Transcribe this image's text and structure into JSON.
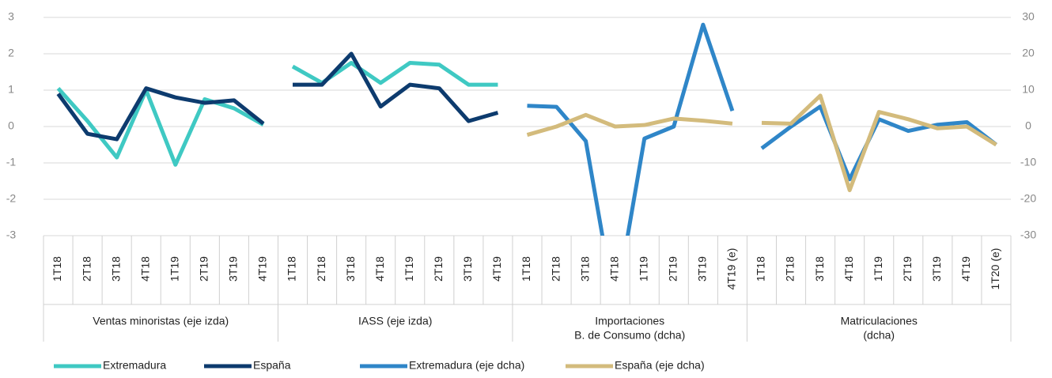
{
  "chart_data": {
    "type": "line",
    "groups": [
      {
        "name": "Ventas minoristas (eje izda)",
        "categories": [
          "1T18",
          "2T18",
          "3T18",
          "4T18",
          "1T19",
          "2T19",
          "3T19",
          "4T19"
        ]
      },
      {
        "name": "IASS (eje izda)",
        "categories": [
          "1T18",
          "2T18",
          "3T18",
          "4T18",
          "1T19",
          "2T19",
          "3T19",
          "4T19"
        ]
      },
      {
        "name": [
          "Importaciones",
          "B. de Consumo (dcha)"
        ],
        "categories": [
          "1T18",
          "2T18",
          "3T18",
          "4T18",
          "1T19",
          "2T19",
          "3T19",
          "4T19 (e)"
        ]
      },
      {
        "name": [
          "Matriculaciones",
          "(dcha)"
        ],
        "categories": [
          "1T18",
          "2T18",
          "3T18",
          "4T18",
          "1T19",
          "2T19",
          "3T19",
          "4T19",
          "1T20 (e)"
        ]
      }
    ],
    "ylim": [
      -3,
      3
    ],
    "yticks": [
      3,
      2,
      1,
      0,
      -1,
      -2,
      -3
    ],
    "y2lim": [
      -30,
      30
    ],
    "y2ticks": [
      30,
      20,
      10,
      0,
      -10,
      -20,
      -30
    ],
    "grid": true,
    "series": [
      {
        "name": "Extremadura",
        "color": "#3fc9c3",
        "values": [
          1.05,
          0.15,
          -0.85,
          1.0,
          -1.05,
          0.75,
          0.5,
          0.05,
          1.65,
          1.2,
          1.75,
          1.2,
          1.75,
          1.7,
          1.15,
          1.15,
          null,
          null,
          null,
          null,
          null,
          null,
          null,
          null,
          null,
          null,
          null,
          null,
          null,
          null,
          null,
          null,
          null
        ]
      },
      {
        "name": "España",
        "color": "#0d3b6e",
        "values": [
          0.9,
          -0.2,
          -0.35,
          1.05,
          0.8,
          0.65,
          0.72,
          0.08,
          1.15,
          1.15,
          2.0,
          0.55,
          1.15,
          1.05,
          0.15,
          0.38,
          null,
          null,
          null,
          null,
          null,
          null,
          null,
          null,
          null,
          null,
          null,
          null,
          null,
          null,
          null,
          null,
          null
        ]
      },
      {
        "name": "Extremadura (eje dcha)",
        "color": "#2f86c8",
        "axis": "y2",
        "values": [
          null,
          null,
          null,
          null,
          null,
          null,
          null,
          null,
          null,
          null,
          null,
          null,
          null,
          null,
          null,
          null,
          5.7,
          5.4,
          -4,
          -50,
          -3.3,
          0,
          28,
          4.3,
          -6,
          0,
          5.5,
          -14.5,
          2,
          -1.2,
          0.5,
          1.2,
          -5
        ]
      },
      {
        "name": "España (eje dcha)",
        "color": "#d3bb7c",
        "axis": "y2",
        "values": [
          null,
          null,
          null,
          null,
          null,
          null,
          null,
          null,
          null,
          null,
          null,
          null,
          null,
          null,
          null,
          null,
          -2.3,
          0,
          3.2,
          0,
          0.4,
          2.2,
          1.6,
          0.8,
          1,
          0.8,
          8.5,
          -17.5,
          4,
          2,
          -0.5,
          0,
          -5
        ]
      }
    ]
  }
}
